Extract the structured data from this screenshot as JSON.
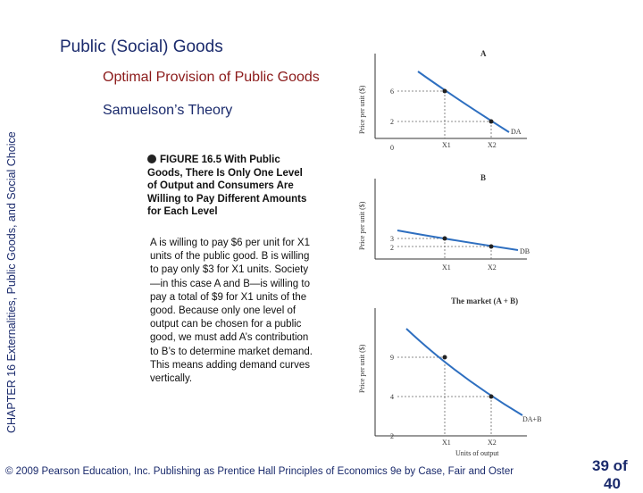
{
  "side_label": {
    "chapter": "CHAPTER 16",
    "title": "Externalities, Public Goods, and Social Choice"
  },
  "title": "Public (Social) Goods",
  "subtitle": "Optimal Provision of Public Goods",
  "theory": "Samuelson’s Theory",
  "figure_caption": "FIGURE 16.5  With Public Goods, There Is Only One Level of Output and Consumers Are Willing to Pay Different Amounts for Each Level",
  "body_text": "A is willing to pay $6 per unit for X1 units of the public good. B is willing to pay only $3 for X1 units. Society—in this case A and B—is willing to pay a total of $9 for X1 units of the good. Because only one level of output can be chosen for a public good, we must add A’s contribution to B’s to determine market demand. This means adding demand curves vertically.",
  "footer": "© 2009 Pearson Education, Inc. Publishing as Prentice Hall   Principles of Economics 9e by Case, Fair and Oster",
  "page": {
    "current": "39 of",
    "total_partial": "40"
  },
  "graphs": {
    "a": {
      "label": "A",
      "ylabel": "Price per unit ($)",
      "ticks_y": [
        "6",
        "2",
        "0"
      ],
      "ticks_x": [
        "X1",
        "X2"
      ],
      "curve": "DA"
    },
    "b": {
      "label": "B",
      "ylabel": "Price per unit ($)",
      "ticks_y": [
        "3",
        "2"
      ],
      "ticks_x": [
        "X1",
        "X2"
      ],
      "curve": "DB"
    },
    "market": {
      "label": "The market (A + B)",
      "ylabel": "Price per unit ($)",
      "ticks_y": [
        "9",
        "4",
        "2"
      ],
      "ticks_x": [
        "X1",
        "X2"
      ],
      "xlabel": "Units of output",
      "curve": "DA+B"
    }
  },
  "colors": {
    "curve": "#2e6fc0",
    "title": "#1a2a6c",
    "subtitle": "#8b1a1a"
  }
}
